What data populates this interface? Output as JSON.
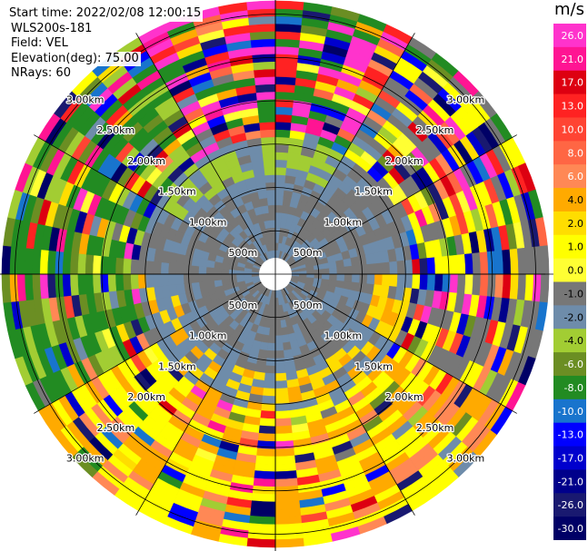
{
  "header": {
    "start_time": "Start time: 2022/02/08 12:00:15",
    "instrument": "WLS200s-181",
    "field": "Field: VEL",
    "elevation": "Elevation(deg): 75.00",
    "nrays": "NRays: 60"
  },
  "chart_data": {
    "type": "heatmap",
    "projection": "polar-ppi",
    "field": "VEL",
    "units": "m/s",
    "nrays": 60,
    "range_rings_m": [
      500,
      1000,
      1500,
      2000,
      2500,
      3000
    ],
    "range_ring_labels": [
      "500m",
      "1.00km",
      "1.50km",
      "2.00km",
      "2.50km",
      "3.00km"
    ],
    "max_range_m": 3150,
    "colorbar": {
      "label": "m/s",
      "ticks": [
        "26.0",
        "21.0",
        "17.0",
        "13.0",
        "10.0",
        "8.0",
        "6.0",
        "4.0",
        "2.0",
        "1.0",
        "0.0",
        "-1.0",
        "-2.0",
        "-4.0",
        "-6.0",
        "-8.0",
        "-10.0",
        "-13.0",
        "-17.0",
        "-21.0",
        "-26.0",
        "-30.0"
      ],
      "colors": [
        "#ff33cc",
        "#ff1493",
        "#dd0011",
        "#ff2222",
        "#ff4433",
        "#ff6644",
        "#ff8855",
        "#ffaa00",
        "#ffdd00",
        "#ffff00",
        "#ffff33",
        "#777777",
        "#6e8caa",
        "#a2cd33",
        "#6b8e23",
        "#228b22",
        "#1874cd",
        "#0000ff",
        "#0000cd",
        "#00008b",
        "#191970",
        "#000066"
      ]
    }
  }
}
